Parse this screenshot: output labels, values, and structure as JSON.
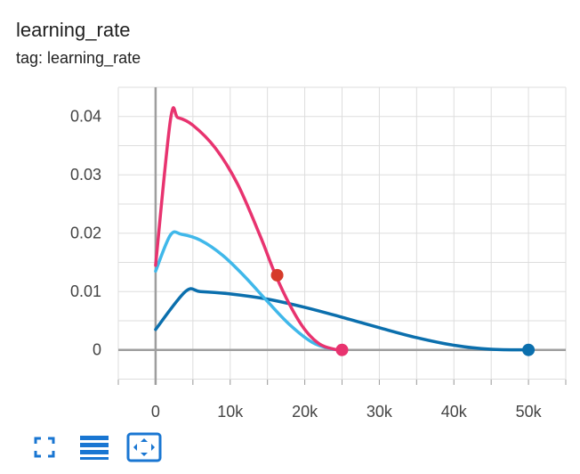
{
  "card": {
    "title": "learning_rate",
    "subtitle": "tag: learning_rate"
  },
  "toolbar": [
    {
      "icon": "fullscreen-icon"
    },
    {
      "icon": "legend-toggle-icon"
    },
    {
      "icon": "fit-domain-icon"
    }
  ],
  "colors": {
    "accent": "#1976d2",
    "grid": "#dddddd",
    "axis": "#9e9e9e"
  },
  "chart_data": {
    "type": "line",
    "title": "",
    "xlabel": "",
    "ylabel": "",
    "xlim": [
      -5000,
      55000
    ],
    "ylim": [
      -0.006,
      0.045
    ],
    "grid": true,
    "x_ticks": [
      0,
      10000,
      20000,
      30000,
      40000,
      50000
    ],
    "x_tick_labels": [
      "0",
      "10k",
      "20k",
      "30k",
      "40k",
      "50k"
    ],
    "y_ticks": [
      0,
      0.01,
      0.02,
      0.03,
      0.04
    ],
    "y_tick_labels": [
      "0",
      "0.01",
      "0.02",
      "0.03",
      "0.04"
    ],
    "series": [
      {
        "color": "#0b6fad",
        "x": [
          0,
          4000,
          6000,
          10000,
          15000,
          20000,
          25000,
          30000,
          35000,
          40000,
          45000,
          50000
        ],
        "y": [
          0.0035,
          0.01,
          0.01,
          0.0096,
          0.0087,
          0.0073,
          0.0056,
          0.0038,
          0.0021,
          0.0008,
          0.0001,
          0.0
        ],
        "end_marker": {
          "x": 50000,
          "y": 0.0,
          "color": "#0b6fad"
        }
      },
      {
        "color": "#40b8ea",
        "x": [
          0,
          2000,
          3500,
          6000,
          9000,
          12000,
          15000,
          18000,
          21000,
          23500,
          25000
        ],
        "y": [
          0.0135,
          0.0197,
          0.0198,
          0.0188,
          0.0162,
          0.0125,
          0.0083,
          0.0043,
          0.0013,
          0.0002,
          0.0
        ]
      },
      {
        "color": "#e8336f",
        "x": [
          0,
          2000,
          3000,
          5000,
          8000,
          11000,
          14000,
          16000,
          18000,
          20000,
          22000,
          24000,
          25000
        ],
        "y": [
          0.0145,
          0.0395,
          0.0398,
          0.0385,
          0.0346,
          0.0284,
          0.0196,
          0.0131,
          0.0077,
          0.0035,
          0.001,
          0.0001,
          0.0
        ],
        "end_marker": {
          "x": 25000,
          "y": 0.0,
          "color": "#e8336f"
        }
      }
    ],
    "markers": [
      {
        "x": 16300,
        "y": 0.0128,
        "color": "#d63b2a"
      }
    ]
  }
}
